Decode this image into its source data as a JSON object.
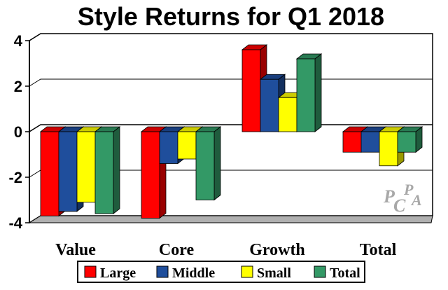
{
  "chart_data": {
    "type": "bar",
    "title": "Style Returns for Q1 2018",
    "categories": [
      "Value",
      "Core",
      "Growth",
      "Total"
    ],
    "series": [
      {
        "name": "Large",
        "color": "#ff0000",
        "values": [
          -3.7,
          -3.8,
          3.6,
          -0.9
        ]
      },
      {
        "name": "Middle",
        "color": "#1f4e9c",
        "values": [
          -3.5,
          -1.4,
          2.3,
          -0.9
        ]
      },
      {
        "name": "Small",
        "color": "#ffff00",
        "values": [
          -3.1,
          -1.2,
          1.5,
          -1.5
        ]
      },
      {
        "name": "Total",
        "color": "#339966",
        "values": [
          -3.6,
          -3.0,
          3.2,
          -0.9
        ]
      }
    ],
    "ylim": [
      -4,
      4
    ],
    "yticks": [
      "-4",
      "-2",
      "0",
      "2",
      "4"
    ],
    "ytick_values": [
      -4,
      -2,
      0,
      2,
      4
    ],
    "grid": true,
    "legend_position": "bottom"
  },
  "watermark": {
    "text": "PCPA",
    "description": "PCPA logo watermark"
  }
}
